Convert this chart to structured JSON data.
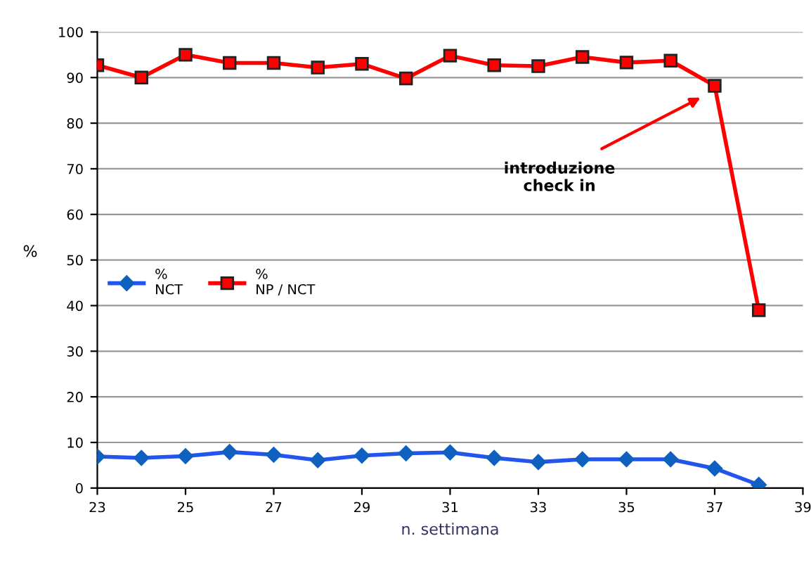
{
  "chart_data": {
    "type": "line",
    "xlabel": "n. settimana",
    "ylabel": "%",
    "x": [
      23,
      24,
      25,
      26,
      27,
      28,
      29,
      30,
      31,
      32,
      33,
      34,
      35,
      36,
      37,
      38
    ],
    "series": [
      {
        "name": "%\nNCT",
        "color": "#2255ee",
        "marker": "diamond",
        "values": [
          6.9,
          6.6,
          7.0,
          7.9,
          7.3,
          6.1,
          7.1,
          7.6,
          7.8,
          6.6,
          5.7,
          6.3,
          6.3,
          6.3,
          4.3,
          0.7
        ]
      },
      {
        "name": "%\nNP / NCT",
        "color": "#ff0000",
        "marker": "square",
        "values": [
          92.7,
          90.0,
          95.0,
          93.2,
          93.2,
          92.2,
          93.0,
          89.8,
          94.8,
          92.7,
          92.5,
          94.5,
          93.3,
          93.7,
          88.2,
          39.0
        ]
      }
    ],
    "xlim": [
      23,
      39
    ],
    "xticks": [
      23,
      25,
      27,
      29,
      31,
      33,
      35,
      37,
      39
    ],
    "ylim": [
      0,
      100
    ],
    "yticks": [
      0,
      10,
      20,
      30,
      40,
      50,
      60,
      70,
      80,
      90,
      100
    ],
    "grid": "y",
    "legend": "left",
    "annotations": [
      "introduzione\ncheck in"
    ]
  }
}
